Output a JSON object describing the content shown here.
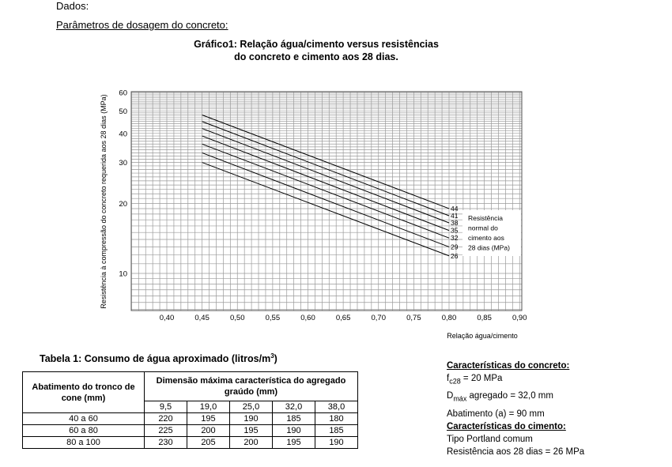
{
  "header": {
    "label": "Dados:",
    "subtitle": "Parâmetros de dosagem do concreto:"
  },
  "chart_title_line1": "Gráfico1: Relação água/cimento versus resistências",
  "chart_title_line2": "do concreto e cimento aos 28 dias.",
  "chart_data": {
    "type": "line",
    "title": "Gráfico1: Relação água/cimento versus resistências do concreto e cimento aos 28 dias.",
    "xlabel": "Relação água/cimento",
    "ylabel": "Resistência à compressão do concreto requerida aos 28 dias (MPa)",
    "x_ticks": [
      "0,40",
      "0,45",
      "0,50",
      "0,55",
      "0,60",
      "0,65",
      "0,70",
      "0,75",
      "0,80",
      "0,85",
      "0,90"
    ],
    "y_ticks": [
      "60",
      "50",
      "40",
      "30",
      "20",
      "10"
    ],
    "y_scale": "log",
    "xlim": [
      0.35,
      0.9
    ],
    "ylim": [
      6,
      60
    ],
    "grid": true,
    "legend_title": [
      "Resistência",
      "normal do",
      "cimento aos",
      "28 dias (MPa)"
    ],
    "series": [
      {
        "name": "44",
        "x": [
          0.45,
          0.8
        ],
        "y": [
          48,
          19
        ]
      },
      {
        "name": "41",
        "x": [
          0.45,
          0.8
        ],
        "y": [
          45,
          17.7
        ]
      },
      {
        "name": "38",
        "x": [
          0.45,
          0.8
        ],
        "y": [
          42,
          16.5
        ]
      },
      {
        "name": "35",
        "x": [
          0.45,
          0.8
        ],
        "y": [
          39,
          15.3
        ]
      },
      {
        "name": "32",
        "x": [
          0.45,
          0.8
        ],
        "y": [
          36,
          14.2
        ]
      },
      {
        "name": "29",
        "x": [
          0.45,
          0.8
        ],
        "y": [
          33,
          13.0
        ]
      },
      {
        "name": "26",
        "x": [
          0.45,
          0.8
        ],
        "y": [
          30,
          11.9
        ]
      }
    ]
  },
  "table": {
    "title": "Tabela 1: Consumo de água aproximado (litros/m",
    "title_sup": "3",
    "title_end": ")",
    "col1_header": "Abatimento do tronco de cone (mm)",
    "group_header": "Dimensão máxima característica do agregado graúdo (mm)",
    "dmax_headers": [
      "9,5",
      "19,0",
      "25,0",
      "32,0",
      "38,0"
    ],
    "rows": [
      {
        "label": "40 a 60",
        "values": [
          "220",
          "195",
          "190",
          "185",
          "180"
        ]
      },
      {
        "label": "60 a 80",
        "values": [
          "225",
          "200",
          "195",
          "190",
          "185"
        ]
      },
      {
        "label": "80 a 100",
        "values": [
          "230",
          "205",
          "200",
          "195",
          "190"
        ]
      }
    ]
  },
  "concrete": {
    "title": "Características do concreto:",
    "fc_sym": "f",
    "fc_sub": "c28",
    "fc_val": " = 20 MPa",
    "dmax_sym": "D",
    "dmax_sub": "máx",
    "dmax_val": " agregado = 32,0 mm",
    "slump": "Abatimento (a) = 90 mm"
  },
  "cement": {
    "title": "Características do cimento:",
    "type": "Tipo Portland comum",
    "strength": "Resistência aos 28 dias = 26 MPa"
  }
}
